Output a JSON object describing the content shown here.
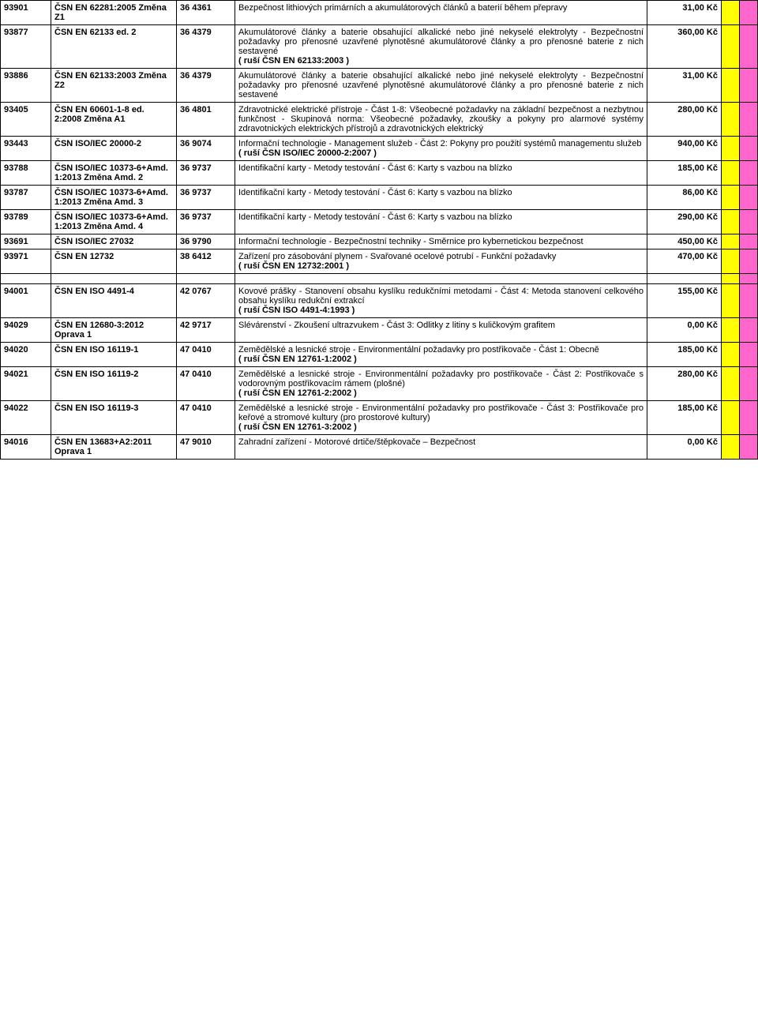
{
  "marker_colors": {
    "m1": "#ffff00",
    "m2": "#ff66cc"
  },
  "rows": [
    {
      "id": "93901",
      "std": "ČSN EN 62281:2005 Změna Z1",
      "cat": "36 4361",
      "desc": "Bezpečnost lithiových primárních a akumulátorových článků a baterií během přepravy",
      "cancel": "",
      "price": "31,00 Kč"
    },
    {
      "id": "93877",
      "std": "ČSN EN 62133 ed. 2",
      "cat": "36 4379",
      "desc": "Akumulátorové články a baterie obsahující alkalické nebo jiné nekyselé elektrolyty - Bezpečnostní požadavky pro přenosné uzavřené plynotěsné akumulátorové články a pro přenosné baterie z nich sestavené",
      "cancel": "( ruší  ČSN EN 62133:2003 )",
      "price": "360,00 Kč"
    },
    {
      "id": "93886",
      "std": "ČSN EN 62133:2003 Změna Z2",
      "cat": "36 4379",
      "desc": "Akumulátorové články a baterie obsahující alkalické nebo jiné nekyselé elektrolyty - Bezpečnostní požadavky pro přenosné uzavřené plynotěsné akumulátorové články a pro přenosné baterie z nich sestavené",
      "cancel": "",
      "price": "31,00 Kč"
    },
    {
      "id": "93405",
      "std": "ČSN EN 60601-1-8 ed. 2:2008 Změna A1",
      "cat": "36 4801",
      "desc": "Zdravotnické elektrické přístroje - Část 1-8: Všeobecné požadavky na základní bezpečnost a nezbytnou funkčnost - Skupinová norma: Všeobecné požadavky, zkoušky a pokyny pro alarmové systémy zdravotnických elektrických přístrojů a zdravotnických elektrický",
      "cancel": "",
      "price": "280,00 Kč"
    },
    {
      "id": "93443",
      "std": "ČSN ISO/IEC 20000-2",
      "cat": "36 9074",
      "desc": "Informační technologie - Management služeb - Část 2: Pokyny pro použití systémů managementu služeb",
      "cancel": "( ruší  ČSN ISO/IEC 20000-2:2007 )",
      "price": "940,00 Kč"
    },
    {
      "id": "93788",
      "std": "ČSN ISO/IEC 10373-6+Amd. 1:2013 Změna Amd. 2",
      "cat": "36 9737",
      "desc": "Identifikační karty - Metody testování - Část 6: Karty s vazbou na blízko",
      "cancel": "",
      "price": "185,00 Kč"
    },
    {
      "id": "93787",
      "std": "ČSN ISO/IEC 10373-6+Amd. 1:2013 Změna Amd. 3",
      "cat": "36 9737",
      "desc": "Identifikační karty - Metody testování - Část 6: Karty s vazbou na blízko",
      "cancel": "",
      "price": "86,00 Kč"
    },
    {
      "id": "93789",
      "std": "ČSN ISO/IEC 10373-6+Amd. 1:2013 Změna Amd. 4",
      "cat": "36 9737",
      "desc": "Identifikační karty - Metody testování - Část 6: Karty s vazbou na blízko",
      "cancel": "",
      "price": "290,00 Kč"
    },
    {
      "id": "93691",
      "std": "ČSN ISO/IEC 27032",
      "cat": "36 9790",
      "desc": "Informační technologie - Bezpečnostní techniky - Směrnice pro kybernetickou bezpečnost",
      "cancel": "",
      "price": "450,00 Kč"
    },
    {
      "id": "93971",
      "std": "ČSN EN 12732",
      "cat": "38 6412",
      "desc": "Zařízení pro zásobování plynem - Svařované ocelové potrubí - Funkční požadavky",
      "cancel": "( ruší  ČSN EN 12732:2001 )",
      "price": "470,00 Kč"
    },
    {
      "spacer": true
    },
    {
      "id": "94001",
      "std": "ČSN EN ISO 4491-4",
      "cat": "42 0767",
      "desc": "Kovové prášky - Stanovení obsahu kyslíku redukčními metodami - Část 4: Metoda stanovení celkového obsahu kyslíku redukční extrakcí",
      "cancel": "( ruší  ČSN ISO 4491-4:1993 )",
      "price": "155,00 Kč"
    },
    {
      "id": "94029",
      "std": "ČSN EN 12680-3:2012 Oprava 1",
      "cat": "42 9717",
      "desc": "Slévárenství - Zkoušení ultrazvukem - Část 3: Odlitky z litiny s kuličkovým grafitem",
      "cancel": "",
      "price": "0,00 Kč"
    },
    {
      "id": "94020",
      "std": "ČSN EN ISO 16119-1",
      "cat": "47 0410",
      "desc": "Zemědělské a lesnické stroje - Environmentální požadavky pro postřikovače - Část 1: Obecně",
      "cancel": "( ruší  ČSN EN 12761-1:2002 )",
      "price": "185,00 Kč"
    },
    {
      "id": "94021",
      "std": "ČSN EN ISO 16119-2",
      "cat": "47 0410",
      "desc": "Zemědělské a lesnické stroje - Environmentální požadavky pro postřikovače - Část 2: Postřikovače s vodorovným postřikovacím rámem (plošné)",
      "cancel": "( ruší  ČSN EN 12761-2:2002 )",
      "price": "280,00 Kč"
    },
    {
      "id": "94022",
      "std": "ČSN EN ISO 16119-3",
      "cat": "47 0410",
      "desc": "Zemědělské a lesnické stroje - Environmentální požadavky pro postřikovače - Část 3: Postřikovače pro keřové a stromové kultury (pro prostorové kultury)",
      "cancel": "( ruší  ČSN EN 12761-3:2002 )",
      "price": "185,00 Kč"
    },
    {
      "id": "94016",
      "std": "ČSN EN 13683+A2:2011 Oprava 1",
      "cat": "47 9010",
      "desc": "Zahradní zařízení - Motorové drtiče/štěpkovače – Bezpečnost",
      "cancel": "",
      "price": "0,00 Kč"
    }
  ]
}
